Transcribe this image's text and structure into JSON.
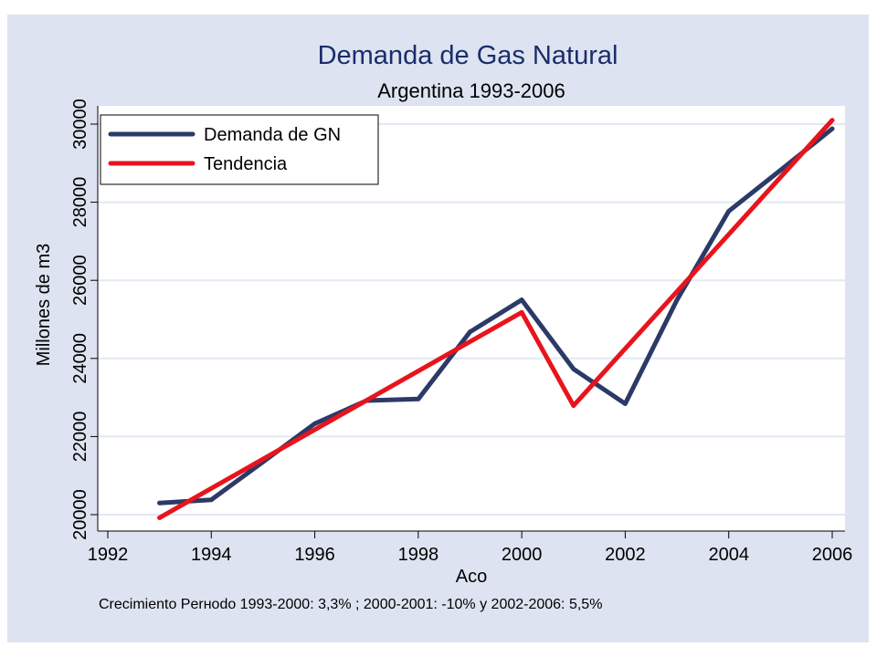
{
  "chart_data": {
    "type": "line",
    "title": "Demanda de Gas Natural",
    "subtitle": "Argentina 1993-2006",
    "xlabel": "Aco",
    "ylabel": "Millones de m3",
    "xlim": [
      1992,
      2006
    ],
    "ylim": [
      20000,
      30000
    ],
    "xticks": [
      1992,
      1994,
      1996,
      1998,
      2000,
      2002,
      2004,
      2006
    ],
    "yticks": [
      20000,
      22000,
      24000,
      26000,
      28000,
      30000
    ],
    "x_tick_labels": [
      "1992",
      "1994",
      "1996",
      "1998",
      "2000",
      "2002",
      "2004",
      "2006"
    ],
    "y_tick_labels": [
      "20000",
      "22000",
      "24000",
      "26000",
      "28000",
      "30000"
    ],
    "grid": true,
    "legend_position": "top-left",
    "series": [
      {
        "name": "Demanda de GN",
        "color": "#2b3a67",
        "x": [
          1993,
          1994,
          1995,
          1996,
          1997,
          1998,
          1999,
          2000,
          2001,
          2002,
          2003,
          2004,
          2005,
          2006
        ],
        "y": [
          20300,
          20380,
          21350,
          22330,
          22920,
          22960,
          24680,
          25500,
          23730,
          22840,
          25500,
          27770,
          28820,
          29880
        ]
      },
      {
        "name": "Tendencia",
        "color": "#e8141c",
        "x": [
          1993,
          2000,
          2001,
          2006
        ],
        "y": [
          19920,
          25180,
          22790,
          30100
        ]
      }
    ],
    "note": "Crecimiento Perнodo 1993-2000: 3,3%  ;  2000-2001: -10%  y  2002-2006: 5,5%"
  }
}
